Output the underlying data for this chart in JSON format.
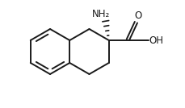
{
  "bg_color": "#ffffff",
  "line_color": "#1a1a1a",
  "line_width": 1.4,
  "figsize": [
    2.3,
    1.34
  ],
  "dpi": 100,
  "nh2_text": "NH₂",
  "oh_text": "OH",
  "o_text": "O",
  "font_size": 8.5
}
